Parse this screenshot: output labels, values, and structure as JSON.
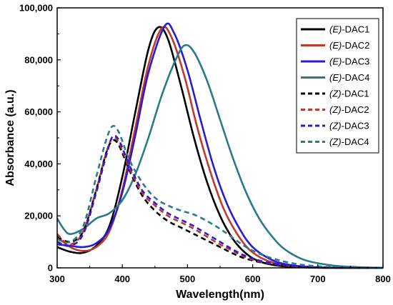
{
  "chart_data": {
    "type": "line",
    "title": "",
    "xlabel": "Wavelength(nm)",
    "ylabel": "Absorbance (a.u.)",
    "xlim": [
      300,
      800
    ],
    "ylim": [
      0,
      100000
    ],
    "x_ticks": [
      300,
      400,
      500,
      600,
      700,
      800
    ],
    "x_tick_labels": [
      "300",
      "400",
      "500",
      "600",
      "700",
      "800"
    ],
    "y_ticks": [
      0,
      20000,
      40000,
      60000,
      80000,
      100000
    ],
    "y_tick_labels": [
      "0",
      "20,000",
      "40,000",
      "60,000",
      "80,000",
      "100,000"
    ],
    "grid": false,
    "legend_position": "top-right",
    "series": [
      {
        "name_prefix": "(E)",
        "name_suffix": "-DAC1",
        "color": "#000000",
        "dash": "solid",
        "points": [
          [
            300,
            8000
          ],
          [
            320,
            6200
          ],
          [
            340,
            5800
          ],
          [
            360,
            8500
          ],
          [
            380,
            16000
          ],
          [
            400,
            35000
          ],
          [
            420,
            60000
          ],
          [
            440,
            84000
          ],
          [
            455,
            92500
          ],
          [
            470,
            88000
          ],
          [
            490,
            70000
          ],
          [
            510,
            50000
          ],
          [
            530,
            33000
          ],
          [
            550,
            20000
          ],
          [
            570,
            11000
          ],
          [
            590,
            5500
          ],
          [
            610,
            2500
          ],
          [
            640,
            800
          ],
          [
            680,
            200
          ],
          [
            720,
            0
          ],
          [
            800,
            0
          ]
        ]
      },
      {
        "name_prefix": "(E)",
        "name_suffix": "-DAC2",
        "color": "#c0392b",
        "dash": "solid",
        "points": [
          [
            300,
            12000
          ],
          [
            320,
            8000
          ],
          [
            340,
            6500
          ],
          [
            360,
            8000
          ],
          [
            380,
            14000
          ],
          [
            400,
            30000
          ],
          [
            420,
            54000
          ],
          [
            440,
            78000
          ],
          [
            460,
            92000
          ],
          [
            475,
            89000
          ],
          [
            495,
            74000
          ],
          [
            515,
            54000
          ],
          [
            535,
            37000
          ],
          [
            555,
            23000
          ],
          [
            575,
            13500
          ],
          [
            595,
            7000
          ],
          [
            620,
            3000
          ],
          [
            650,
            1000
          ],
          [
            690,
            200
          ],
          [
            740,
            0
          ],
          [
            800,
            0
          ]
        ]
      },
      {
        "name_prefix": "(E)",
        "name_suffix": "-DAC3",
        "color": "#2a1ad8",
        "dash": "solid",
        "points": [
          [
            300,
            9000
          ],
          [
            320,
            8500
          ],
          [
            340,
            8000
          ],
          [
            360,
            9500
          ],
          [
            380,
            15000
          ],
          [
            400,
            29000
          ],
          [
            420,
            51000
          ],
          [
            440,
            75000
          ],
          [
            465,
            93000
          ],
          [
            480,
            90000
          ],
          [
            500,
            76000
          ],
          [
            520,
            57000
          ],
          [
            540,
            39000
          ],
          [
            560,
            25000
          ],
          [
            580,
            15000
          ],
          [
            600,
            8000
          ],
          [
            630,
            3000
          ],
          [
            660,
            1000
          ],
          [
            700,
            200
          ],
          [
            750,
            0
          ],
          [
            800,
            0
          ]
        ]
      },
      {
        "name_prefix": "(E)",
        "name_suffix": "-DAC4",
        "color": "#2a7a8a",
        "dash": "solid",
        "points": [
          [
            300,
            19000
          ],
          [
            310,
            15000
          ],
          [
            320,
            13000
          ],
          [
            340,
            15000
          ],
          [
            360,
            19000
          ],
          [
            380,
            21000
          ],
          [
            400,
            26000
          ],
          [
            420,
            36000
          ],
          [
            440,
            50000
          ],
          [
            460,
            66000
          ],
          [
            480,
            79000
          ],
          [
            495,
            85500
          ],
          [
            510,
            83000
          ],
          [
            530,
            72000
          ],
          [
            550,
            57000
          ],
          [
            570,
            42000
          ],
          [
            590,
            29000
          ],
          [
            610,
            19000
          ],
          [
            630,
            12000
          ],
          [
            650,
            7000
          ],
          [
            680,
            3000
          ],
          [
            720,
            1000
          ],
          [
            760,
            300
          ],
          [
            800,
            0
          ]
        ]
      },
      {
        "name_prefix": "(Z)",
        "name_suffix": "-DAC1",
        "color": "#000000",
        "dash": "dashed",
        "points": [
          [
            300,
            12000
          ],
          [
            320,
            10000
          ],
          [
            340,
            14000
          ],
          [
            360,
            30000
          ],
          [
            375,
            44000
          ],
          [
            385,
            49000
          ],
          [
            395,
            47000
          ],
          [
            410,
            38000
          ],
          [
            430,
            28000
          ],
          [
            450,
            22000
          ],
          [
            470,
            18000
          ],
          [
            490,
            15500
          ],
          [
            510,
            13000
          ],
          [
            530,
            10500
          ],
          [
            550,
            8000
          ],
          [
            570,
            5500
          ],
          [
            590,
            3500
          ],
          [
            620,
            1800
          ],
          [
            660,
            600
          ],
          [
            720,
            100
          ],
          [
            800,
            0
          ]
        ]
      },
      {
        "name_prefix": "(Z)",
        "name_suffix": "-DAC2",
        "color": "#c0392b",
        "dash": "dashed",
        "points": [
          [
            300,
            13000
          ],
          [
            320,
            9000
          ],
          [
            340,
            14000
          ],
          [
            360,
            30000
          ],
          [
            375,
            44000
          ],
          [
            385,
            50000
          ],
          [
            395,
            48000
          ],
          [
            410,
            39000
          ],
          [
            430,
            29000
          ],
          [
            450,
            24000
          ],
          [
            470,
            20000
          ],
          [
            490,
            17500
          ],
          [
            510,
            15000
          ],
          [
            530,
            12000
          ],
          [
            550,
            9000
          ],
          [
            570,
            6500
          ],
          [
            590,
            4000
          ],
          [
            620,
            2000
          ],
          [
            660,
            700
          ],
          [
            720,
            100
          ],
          [
            800,
            0
          ]
        ]
      },
      {
        "name_prefix": "(Z)",
        "name_suffix": "-DAC3",
        "color": "#2a1ad8",
        "dash": "dashed",
        "points": [
          [
            300,
            10000
          ],
          [
            320,
            8500
          ],
          [
            340,
            13000
          ],
          [
            360,
            29000
          ],
          [
            375,
            43000
          ],
          [
            385,
            50500
          ],
          [
            395,
            49000
          ],
          [
            410,
            40000
          ],
          [
            430,
            30000
          ],
          [
            450,
            25000
          ],
          [
            470,
            21000
          ],
          [
            490,
            18500
          ],
          [
            510,
            16000
          ],
          [
            530,
            13000
          ],
          [
            550,
            10000
          ],
          [
            570,
            7000
          ],
          [
            590,
            4500
          ],
          [
            620,
            2200
          ],
          [
            660,
            800
          ],
          [
            720,
            150
          ],
          [
            800,
            0
          ]
        ]
      },
      {
        "name_prefix": "(Z)",
        "name_suffix": "-DAC4",
        "color": "#2a7a8a",
        "dash": "dashed",
        "points": [
          [
            300,
            11000
          ],
          [
            320,
            10000
          ],
          [
            340,
            16000
          ],
          [
            360,
            35000
          ],
          [
            375,
            49000
          ],
          [
            385,
            54500
          ],
          [
            395,
            52000
          ],
          [
            410,
            42000
          ],
          [
            430,
            33000
          ],
          [
            450,
            27000
          ],
          [
            470,
            24000
          ],
          [
            490,
            22000
          ],
          [
            510,
            20500
          ],
          [
            530,
            18000
          ],
          [
            550,
            15000
          ],
          [
            570,
            11500
          ],
          [
            590,
            8000
          ],
          [
            620,
            4500
          ],
          [
            660,
            1800
          ],
          [
            700,
            600
          ],
          [
            750,
            100
          ],
          [
            800,
            0
          ]
        ]
      }
    ]
  }
}
